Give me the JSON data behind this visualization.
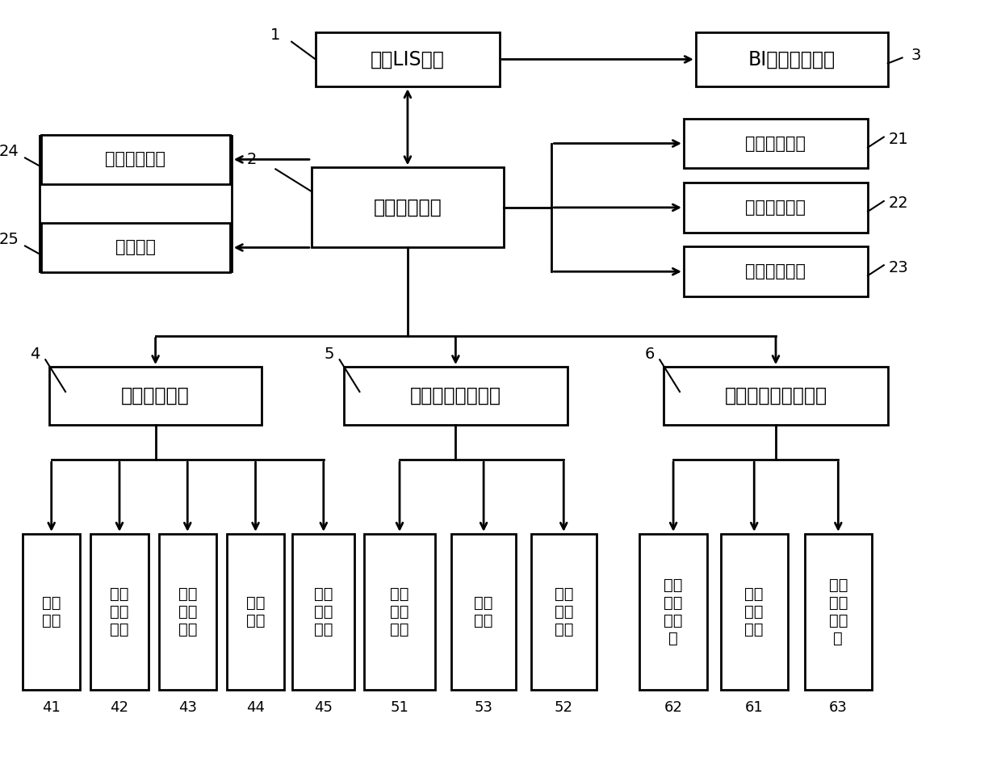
{
  "bg_color": "#ffffff",
  "box_edge_color": "#000000",
  "lw": 2.0,
  "arrow_color": "#000000",
  "texts": {
    "lis": "医院LIS系统",
    "bi": "BI数据分析系统",
    "central": "中央调度系统",
    "ic": "信息采集模块",
    "id": "信息分配模块",
    "ifb": "信息反馈模块",
    "stor": "信息存储模块",
    "ctrl": "控制模块",
    "q": "取号排队系统",
    "lb": "贴标分管采血系统",
    "ts": "采血管分拣传送系统",
    "m41": "取号\n模块",
    "m42": "排队\n看版\n模块",
    "m43": "窗口\n显示\n模块",
    "m44": "语音\n模块",
    "m45": "队列\n调度\n模块",
    "m51": "桌面\n采血\n系统",
    "m53": "统计\n系统",
    "m52": "贴标\n分管\n系统",
    "m62": "采血\n管输\n送装\n置",
    "m61": "采血\n管分\n拣机",
    "m63": "采血\n管传\n送装\n置"
  }
}
